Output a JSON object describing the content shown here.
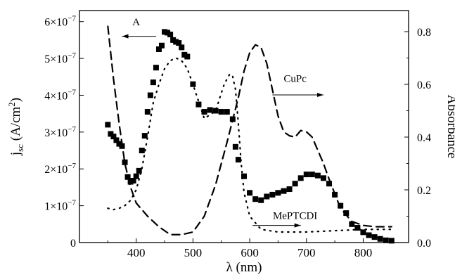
{
  "chart_data": {
    "type": "scatter",
    "xlabel": "λ (nm)",
    "ylabel_left": {
      "base": "j",
      "sub": "sc",
      "rest": " (A/cm",
      "sup": "2",
      "close": ")"
    },
    "ylabel_right": "Absorbance",
    "xlim": [
      300,
      880
    ],
    "ylim_left": [
      0,
      6.3e-07
    ],
    "ylim_right": [
      0,
      0.88
    ],
    "x_ticks": [
      400,
      500,
      600,
      700,
      800
    ],
    "x_tick_labels": [
      "400",
      "500",
      "600",
      "700",
      "800"
    ],
    "y_left_ticks": [
      0,
      1e-07,
      2e-07,
      3e-07,
      4e-07,
      5e-07,
      6e-07
    ],
    "y_left_tick_labels": [
      {
        "mant": "0",
        "exp": ""
      },
      {
        "mant": "1×10",
        "exp": "−7"
      },
      {
        "mant": "2×10",
        "exp": "−7"
      },
      {
        "mant": "3×10",
        "exp": "−7"
      },
      {
        "mant": "4×10",
        "exp": "−7"
      },
      {
        "mant": "5×10",
        "exp": "−7"
      },
      {
        "mant": "6×10",
        "exp": "−7"
      }
    ],
    "y_right_ticks": [
      0.0,
      0.2,
      0.4,
      0.6,
      0.8
    ],
    "y_right_tick_labels": [
      "0.0",
      "0.2",
      "0.4",
      "0.6",
      "0.8"
    ],
    "grid": false,
    "series": [
      {
        "style": "squares",
        "axis": "left",
        "x": [
          350,
          355,
          360,
          365,
          370,
          375,
          380,
          385,
          390,
          395,
          400,
          405,
          410,
          415,
          420,
          425,
          430,
          435,
          440,
          445,
          450,
          455,
          460,
          465,
          470,
          475,
          480,
          485,
          490,
          500,
          510,
          520,
          530,
          540,
          550,
          560,
          570,
          575,
          580,
          590,
          600,
          610,
          620,
          630,
          640,
          650,
          660,
          670,
          680,
          690,
          700,
          710,
          720,
          730,
          740,
          750,
          760,
          770,
          780,
          790,
          800,
          810,
          820,
          830,
          840,
          850
        ],
        "y": [
          3.2e-07,
          2.95e-07,
          2.88e-07,
          2.78e-07,
          2.68e-07,
          2.62e-07,
          2.18e-07,
          1.78e-07,
          1.65e-07,
          1.68e-07,
          1.8e-07,
          1.95e-07,
          2.5e-07,
          2.9e-07,
          3.55e-07,
          4e-07,
          4.35e-07,
          4.75e-07,
          5.25e-07,
          5.35e-07,
          5.72e-07,
          5.7e-07,
          5.65e-07,
          5.5e-07,
          5.45e-07,
          5.42e-07,
          5.3e-07,
          5.1e-07,
          5.05e-07,
          4.3e-07,
          3.75e-07,
          3.55e-07,
          3.6e-07,
          3.58e-07,
          3.55e-07,
          3.55e-07,
          3.35e-07,
          2.6e-07,
          2.25e-07,
          1.8e-07,
          1.35e-07,
          1.18e-07,
          1.15e-07,
          1.25e-07,
          1.3e-07,
          1.35e-07,
          1.4e-07,
          1.45e-07,
          1.6e-07,
          1.75e-07,
          1.85e-07,
          1.85e-07,
          1.82e-07,
          1.75e-07,
          1.6e-07,
          1.3e-07,
          1e-07,
          8e-08,
          5e-08,
          4e-08,
          2.8e-08,
          2e-08,
          1.5e-08,
          1e-08,
          6e-09,
          5e-09
        ]
      },
      {
        "style": "dashed",
        "axis": "right",
        "x": [
          350,
          360,
          370,
          380,
          390,
          400,
          420,
          440,
          460,
          480,
          500,
          520,
          540,
          560,
          580,
          590,
          600,
          610,
          620,
          630,
          640,
          650,
          660,
          670,
          680,
          690,
          700,
          710,
          720,
          730,
          740,
          760,
          780,
          800,
          820,
          850
        ],
        "y": [
          0.82,
          0.62,
          0.45,
          0.3,
          0.21,
          0.15,
          0.1,
          0.06,
          0.03,
          0.03,
          0.04,
          0.1,
          0.22,
          0.38,
          0.55,
          0.65,
          0.72,
          0.75,
          0.74,
          0.68,
          0.58,
          0.48,
          0.42,
          0.405,
          0.4,
          0.425,
          0.42,
          0.4,
          0.35,
          0.3,
          0.24,
          0.13,
          0.08,
          0.065,
          0.06,
          0.06
        ]
      },
      {
        "style": "dotted",
        "axis": "right",
        "x": [
          350,
          360,
          370,
          380,
          390,
          400,
          410,
          420,
          430,
          440,
          450,
          460,
          470,
          480,
          490,
          500,
          520,
          540,
          555,
          565,
          570,
          575,
          580,
          585,
          590,
          600,
          620,
          650,
          700,
          750,
          800,
          850
        ],
        "y": [
          0.13,
          0.125,
          0.13,
          0.14,
          0.16,
          0.2,
          0.28,
          0.4,
          0.53,
          0.6,
          0.66,
          0.69,
          0.7,
          0.69,
          0.66,
          0.6,
          0.47,
          0.5,
          0.6,
          0.64,
          0.63,
          0.58,
          0.45,
          0.3,
          0.19,
          0.1,
          0.05,
          0.04,
          0.04,
          0.045,
          0.05,
          0.05
        ]
      }
    ],
    "annotations": [
      {
        "text": "A",
        "x": 400,
        "y_left": 5.9e-07,
        "arrow_from": [
          435,
          5.6e-07
        ],
        "arrow_to": [
          375,
          5.6e-07
        ]
      },
      {
        "text": "CuPc",
        "x": 680,
        "y_right": 0.61,
        "arrow_from": [
          640,
          0.56
        ],
        "arrow_to": [
          730,
          0.56
        ]
      },
      {
        "text": "MePTCDI",
        "x": 680,
        "y_right": 0.09,
        "arrow_from": [
          605,
          0.065
        ],
        "arrow_to": [
          690,
          0.065
        ]
      }
    ]
  }
}
